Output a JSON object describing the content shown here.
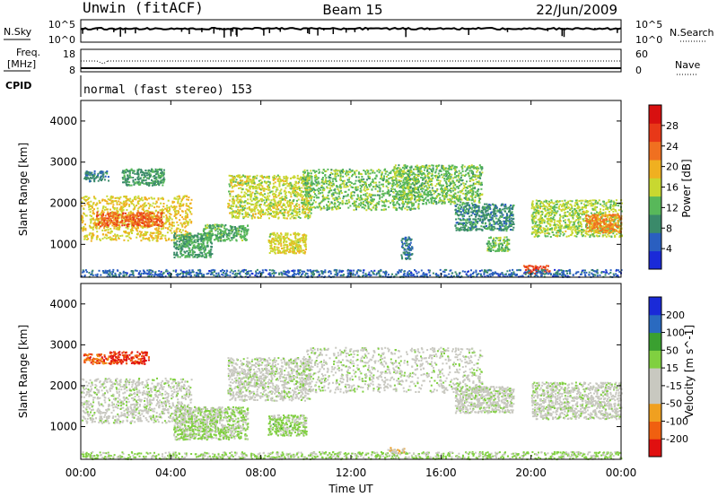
{
  "header": {
    "station": "Unwin (fitACF)",
    "beam": "Beam 15",
    "date": "22/Jun/2009"
  },
  "strip_panels": {
    "nsky": {
      "label": "N.Sky",
      "ticks": [
        "10^5",
        "10^0"
      ],
      "right_label": "N.Search",
      "right_ticks": [
        "10^5",
        "10^0"
      ]
    },
    "freq": {
      "label_line1": "Freq.",
      "label_line2": "[MHz]",
      "ticks": [
        "18",
        "8"
      ],
      "right_label": "Nave",
      "right_ticks": [
        "60",
        "0"
      ]
    },
    "cpid": {
      "label": "CPID",
      "value": "normal (fast stereo) 153"
    }
  },
  "colors": {
    "power": [
      "#1a2ad8",
      "#2a5fc0",
      "#3a8a6a",
      "#58b85a",
      "#c8d830",
      "#f0b020",
      "#f07020",
      "#e83818",
      "#d81010"
    ],
    "velocity": [
      "#e01010",
      "#f06010",
      "#f0a020",
      "#c8c8c0",
      "#c8c8c0",
      "#80d040",
      "#3aa030",
      "#2a6ac0",
      "#1a2ad8"
    ]
  },
  "chart_data": [
    {
      "type": "heatmap",
      "title": "Power",
      "xlabel": "Time UT",
      "ylabel": "Slant Range [km]",
      "xlim": [
        0,
        24
      ],
      "ylim": [
        200,
        4500
      ],
      "x_ticks": [
        "00:00",
        "04:00",
        "08:00",
        "12:00",
        "16:00",
        "20:00",
        "00:00"
      ],
      "y_ticks": [
        "1000",
        "2000",
        "3000",
        "4000"
      ],
      "colorbar": {
        "label": "Power [dB]",
        "range": [
          0,
          32
        ],
        "ticks": [
          "4",
          "8",
          "12",
          "16",
          "20",
          "24",
          "28"
        ]
      },
      "regions": [
        {
          "t_start": 0.0,
          "t_end": 4.9,
          "r_low": 1100,
          "r_high": 2200,
          "value": 18
        },
        {
          "t_start": 0.6,
          "t_end": 3.6,
          "r_low": 1450,
          "r_high": 1800,
          "value": 24
        },
        {
          "t_start": 0.1,
          "t_end": 1.2,
          "r_low": 2550,
          "r_high": 2800,
          "value": 8
        },
        {
          "t_start": 1.8,
          "t_end": 3.7,
          "r_low": 2450,
          "r_high": 2850,
          "value": 10
        },
        {
          "t_start": 4.1,
          "t_end": 5.8,
          "r_low": 700,
          "r_high": 1300,
          "value": 11
        },
        {
          "t_start": 5.4,
          "t_end": 7.4,
          "r_low": 1100,
          "r_high": 1500,
          "value": 12
        },
        {
          "t_start": 6.5,
          "t_end": 10.2,
          "r_low": 1650,
          "r_high": 2700,
          "value": 16
        },
        {
          "t_start": 8.3,
          "t_end": 10.0,
          "r_low": 800,
          "r_high": 1300,
          "value": 17
        },
        {
          "t_start": 9.8,
          "t_end": 15.0,
          "r_low": 1850,
          "r_high": 2850,
          "value": 13
        },
        {
          "t_start": 13.8,
          "t_end": 17.8,
          "r_low": 2000,
          "r_high": 2950,
          "value": 13
        },
        {
          "t_start": 14.2,
          "t_end": 14.7,
          "r_low": 650,
          "r_high": 1200,
          "value": 7
        },
        {
          "t_start": 16.6,
          "t_end": 19.2,
          "r_low": 1350,
          "r_high": 2000,
          "value": 9
        },
        {
          "t_start": 18.0,
          "t_end": 19.0,
          "r_low": 850,
          "r_high": 1200,
          "value": 13
        },
        {
          "t_start": 20.0,
          "t_end": 24.0,
          "r_low": 1200,
          "r_high": 2100,
          "value": 15
        },
        {
          "t_start": 22.4,
          "t_end": 24.0,
          "r_low": 1300,
          "r_high": 1750,
          "value": 22
        },
        {
          "t_start": 19.6,
          "t_end": 20.8,
          "r_low": 300,
          "r_high": 500,
          "value": 26
        },
        {
          "t_start": 0.0,
          "t_end": 24.0,
          "r_low": 220,
          "r_high": 400,
          "value": 6
        }
      ]
    },
    {
      "type": "heatmap",
      "title": "Velocity",
      "xlabel": "Time UT",
      "ylabel": "Slant Range [km]",
      "xlim": [
        0,
        24
      ],
      "ylim": [
        200,
        4500
      ],
      "x_ticks": [
        "00:00",
        "04:00",
        "08:00",
        "12:00",
        "16:00",
        "20:00",
        "00:00"
      ],
      "y_ticks": [
        "1000",
        "2000",
        "3000",
        "4000"
      ],
      "colorbar": {
        "label": "Velocity [m s^-1]",
        "range": [
          -250,
          250
        ],
        "ticks": [
          "-200",
          "-100",
          "-50",
          "-15",
          "15",
          "50",
          "100",
          "200"
        ]
      },
      "regions": [
        {
          "t_start": 0.0,
          "t_end": 4.9,
          "r_low": 1100,
          "r_high": 2200,
          "value": 0
        },
        {
          "t_start": 0.1,
          "t_end": 1.2,
          "r_low": 2550,
          "r_high": 2800,
          "value": -170
        },
        {
          "t_start": 1.2,
          "t_end": 3.0,
          "r_low": 2550,
          "r_high": 2850,
          "value": -200
        },
        {
          "t_start": 4.1,
          "t_end": 7.4,
          "r_low": 700,
          "r_high": 1500,
          "value": 30
        },
        {
          "t_start": 6.5,
          "t_end": 10.2,
          "r_low": 1650,
          "r_high": 2700,
          "value": 0
        },
        {
          "t_start": 8.3,
          "t_end": 10.0,
          "r_low": 800,
          "r_high": 1300,
          "value": 40
        },
        {
          "t_start": 9.8,
          "t_end": 17.8,
          "r_low": 1850,
          "r_high": 2950,
          "value": 0
        },
        {
          "t_start": 16.6,
          "t_end": 19.2,
          "r_low": 1350,
          "r_high": 2000,
          "value": 0
        },
        {
          "t_start": 20.0,
          "t_end": 24.0,
          "r_low": 1200,
          "r_high": 2100,
          "value": 0
        },
        {
          "t_start": 13.6,
          "t_end": 14.4,
          "r_low": 350,
          "r_high": 500,
          "value": -70
        },
        {
          "t_start": 0.0,
          "t_end": 24.0,
          "r_low": 220,
          "r_high": 400,
          "value": 35
        }
      ]
    }
  ]
}
